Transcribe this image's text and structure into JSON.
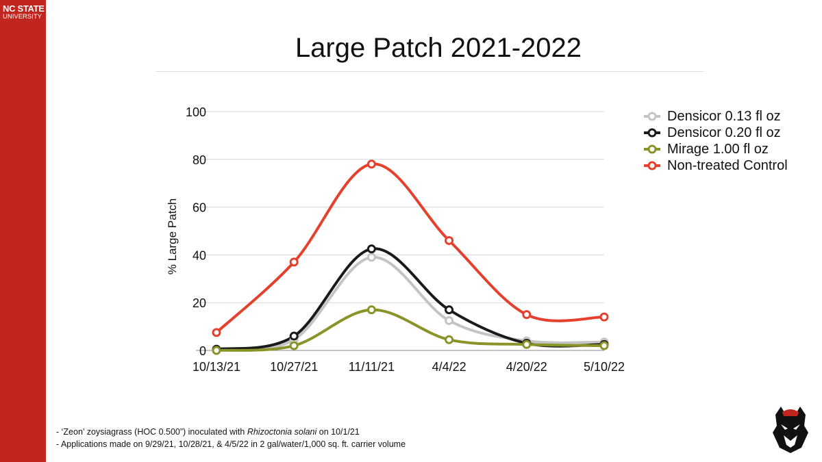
{
  "brand": {
    "line1": "NC STATE",
    "line2": "UNIVERSITY",
    "color": "#c0261f"
  },
  "slide_title": "Large Patch 2021-2022",
  "notes": [
    {
      "pre": "- ‘Zeon’ zoysiagrass (HOC 0.500”) inoculated with ",
      "em": "Rhizoctonia solani",
      "post": " on 10/1/21"
    },
    {
      "pre": "- Applications made on 9/29/21, 10/28/21, & 4/5/22 in 2 gal/water/1,000 sq. ft. carrier volume",
      "em": "",
      "post": ""
    }
  ],
  "chart_data": {
    "type": "line",
    "title": "",
    "xlabel": "",
    "ylabel": "% Large Patch",
    "ylim": [
      0,
      100
    ],
    "yticks": [
      0,
      20,
      40,
      60,
      80,
      100
    ],
    "grid": true,
    "smooth": true,
    "legend_position": "right",
    "categories": [
      "10/13/21",
      "10/27/21",
      "11/11/21",
      "4/4/22",
      "4/20/22",
      "5/10/22"
    ],
    "series": [
      {
        "name": "Densicor 0.13 fl oz",
        "color": "#c4c4c4",
        "values": [
          0.5,
          4.5,
          39,
          12.5,
          4,
          3.5
        ]
      },
      {
        "name": "Densicor 0.20 fl oz",
        "color": "#1a1a1a",
        "values": [
          0.5,
          6,
          42.5,
          17,
          3,
          2.5
        ]
      },
      {
        "name": "Mirage 1.00 fl oz",
        "color": "#8a9328",
        "values": [
          0,
          2,
          17,
          4.5,
          2.5,
          2
        ]
      },
      {
        "name": "Non-treated Control",
        "color": "#e4402d",
        "values": [
          7.5,
          37,
          78,
          46,
          15,
          14
        ]
      }
    ]
  }
}
